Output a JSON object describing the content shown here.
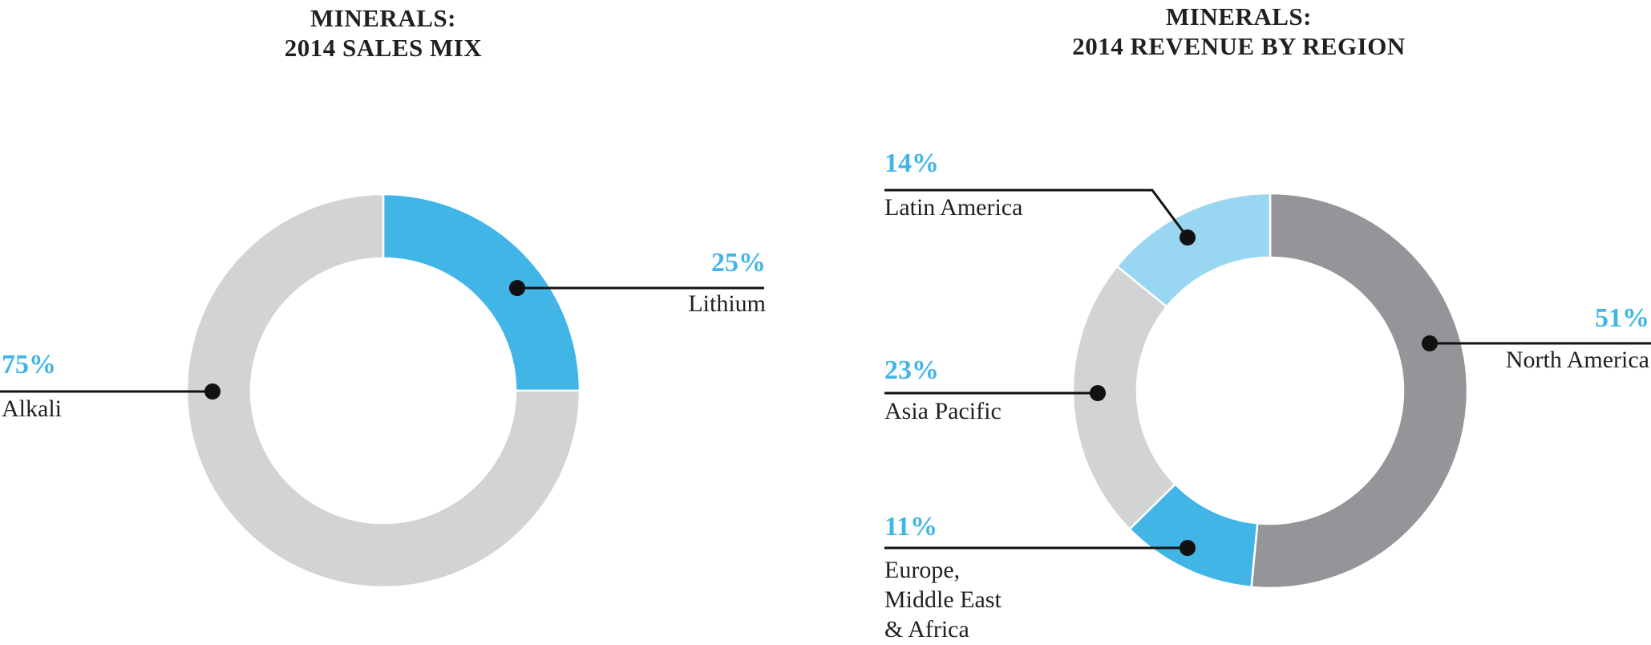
{
  "colors": {
    "accent_blue": "#41b6e6",
    "light_blue": "#99d6f1",
    "light_gray": "#d1d3d4",
    "dark_gray": "#939598",
    "text_black": "#231f20",
    "line_black": "#111111"
  },
  "charts": [
    {
      "title_line1": "MINERALS:",
      "title_line2": "2014 SALES MIX",
      "callouts": [
        {
          "pct": "25%",
          "label": "Lithium"
        },
        {
          "pct": "75%",
          "label": "Alkali"
        }
      ]
    },
    {
      "title_line1": "MINERALS:",
      "title_line2": "2014 REVENUE BY REGION",
      "callouts": [
        {
          "pct": "14%",
          "label": "Latin America"
        },
        {
          "pct": "23%",
          "label": "Asia Pacific"
        },
        {
          "pct": "11%",
          "label_line1": "Europe,",
          "label_line2": "Middle East",
          "label_line3": "& Africa"
        },
        {
          "pct": "51%",
          "label": "North America"
        }
      ]
    }
  ],
  "chart_data": [
    {
      "type": "pie",
      "subtype": "donut",
      "title": "MINERALS: 2014 SALES MIX",
      "legend_position": "callout-labels",
      "segments": [
        {
          "label": "Lithium",
          "value_pct": 25,
          "color": "#41b6e6"
        },
        {
          "label": "Alkali",
          "value_pct": 75,
          "color": "#d1d3d4"
        }
      ]
    },
    {
      "type": "pie",
      "subtype": "donut",
      "title": "MINERALS: 2014 REVENUE BY REGION",
      "legend_position": "callout-labels",
      "segments": [
        {
          "label": "North America",
          "value_pct": 51,
          "color": "#939598"
        },
        {
          "label": "Europe, Middle East & Africa",
          "value_pct": 11,
          "color": "#41b6e6"
        },
        {
          "label": "Asia Pacific",
          "value_pct": 23,
          "color": "#d1d3d4"
        },
        {
          "label": "Latin America",
          "value_pct": 14,
          "color": "#99d6f1"
        }
      ]
    }
  ]
}
